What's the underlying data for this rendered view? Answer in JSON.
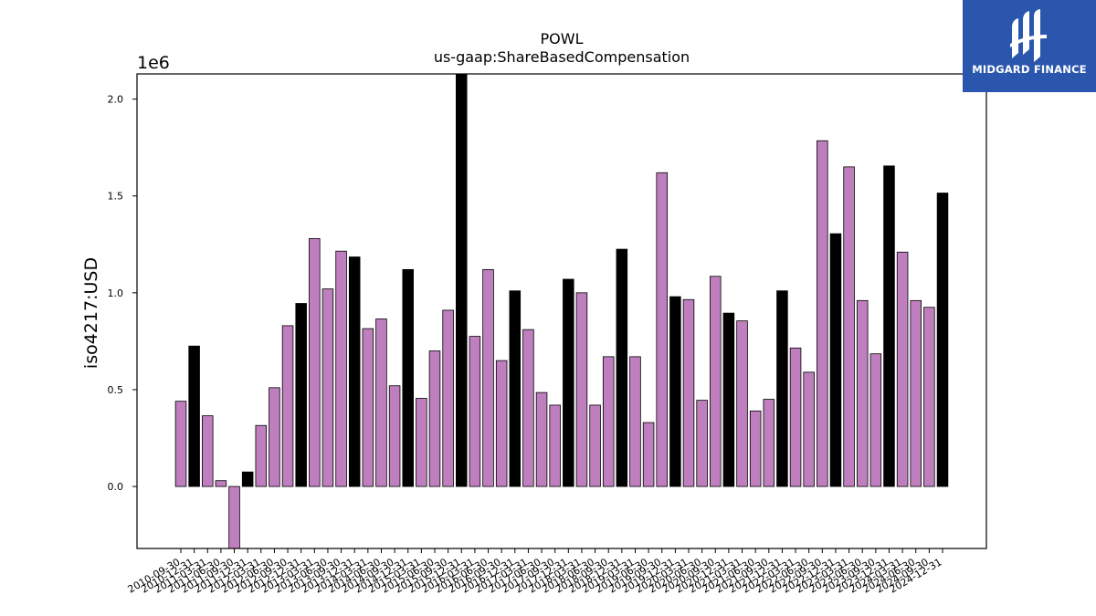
{
  "chart_data": {
    "type": "bar",
    "title": "POWL",
    "subtitle": "us-gaap:ShareBasedCompensation",
    "ylabel": "iso4217:USD",
    "xlabel": "",
    "y_multiplier": "1e6",
    "ylim": [
      -320000,
      2130000
    ],
    "yticks": [
      0,
      500000,
      1000000,
      1500000,
      2000000
    ],
    "ytick_labels": [
      "0.0",
      "0.5",
      "1.0",
      "1.5",
      "2.0"
    ],
    "grid": false,
    "categories": [
      "2010-09-30",
      "2010-12-31",
      "2011-03-31",
      "2011-06-30",
      "2011-09-30",
      "2011-12-31",
      "2012-03-31",
      "2012-06-30",
      "2012-09-30",
      "2012-12-31",
      "2013-03-31",
      "2013-06-30",
      "2013-09-30",
      "2013-12-31",
      "2014-03-31",
      "2014-06-30",
      "2014-09-30",
      "2014-12-31",
      "2015-03-31",
      "2015-06-30",
      "2015-09-30",
      "2015-12-31",
      "2016-03-31",
      "2016-06-30",
      "2016-09-30",
      "2016-12-31",
      "2017-03-31",
      "2017-06-30",
      "2017-09-30",
      "2017-12-31",
      "2018-03-31",
      "2018-06-30",
      "2018-09-30",
      "2018-12-31",
      "2019-03-31",
      "2019-06-30",
      "2019-09-30",
      "2019-12-31",
      "2020-03-31",
      "2020-06-30",
      "2020-09-30",
      "2020-12-31",
      "2021-03-31",
      "2021-06-30",
      "2021-09-30",
      "2021-12-31",
      "2022-03-31",
      "2022-06-30",
      "2022-09-30",
      "2022-12-31",
      "2023-03-31",
      "2023-06-30",
      "2023-09-30",
      "2023-12-31",
      "2024-03-31",
      "2024-06-30",
      "2024-09-30",
      "2024-12-31"
    ],
    "values": [
      440000,
      725000,
      365000,
      30000,
      -330000,
      75000,
      315000,
      510000,
      830000,
      945000,
      1280000,
      1020000,
      1215000,
      1185000,
      815000,
      865000,
      520000,
      1120000,
      455000,
      700000,
      910000,
      2200000,
      775000,
      1120000,
      650000,
      1010000,
      810000,
      485000,
      420000,
      1070000,
      1000000,
      420000,
      670000,
      1225000,
      670000,
      330000,
      1620000,
      980000,
      965000,
      445000,
      1085000,
      895000,
      855000,
      390000,
      450000,
      1010000,
      715000,
      590000,
      1785000,
      1305000,
      1650000,
      960000,
      685000,
      1655000,
      1210000,
      960000,
      925000,
      1515000
    ],
    "period_type": [
      "q",
      "a",
      "q",
      "q",
      "q",
      "a",
      "q",
      "q",
      "q",
      "a",
      "q",
      "q",
      "q",
      "a",
      "q",
      "q",
      "q",
      "a",
      "q",
      "q",
      "q",
      "a",
      "q",
      "q",
      "q",
      "a",
      "q",
      "q",
      "q",
      "a",
      "q",
      "q",
      "q",
      "a",
      "q",
      "q",
      "q",
      "a",
      "q",
      "q",
      "q",
      "a",
      "q",
      "q",
      "q",
      "a",
      "q",
      "q",
      "q",
      "a",
      "q",
      "q",
      "q",
      "a",
      "q",
      "q",
      "q",
      "a"
    ],
    "colors": {
      "q": "#bf7fbf",
      "a": "#000000",
      "edge": "#000000"
    }
  },
  "logo": {
    "text": "MIDGARD FINANCE",
    "background": "#2a56ad"
  }
}
